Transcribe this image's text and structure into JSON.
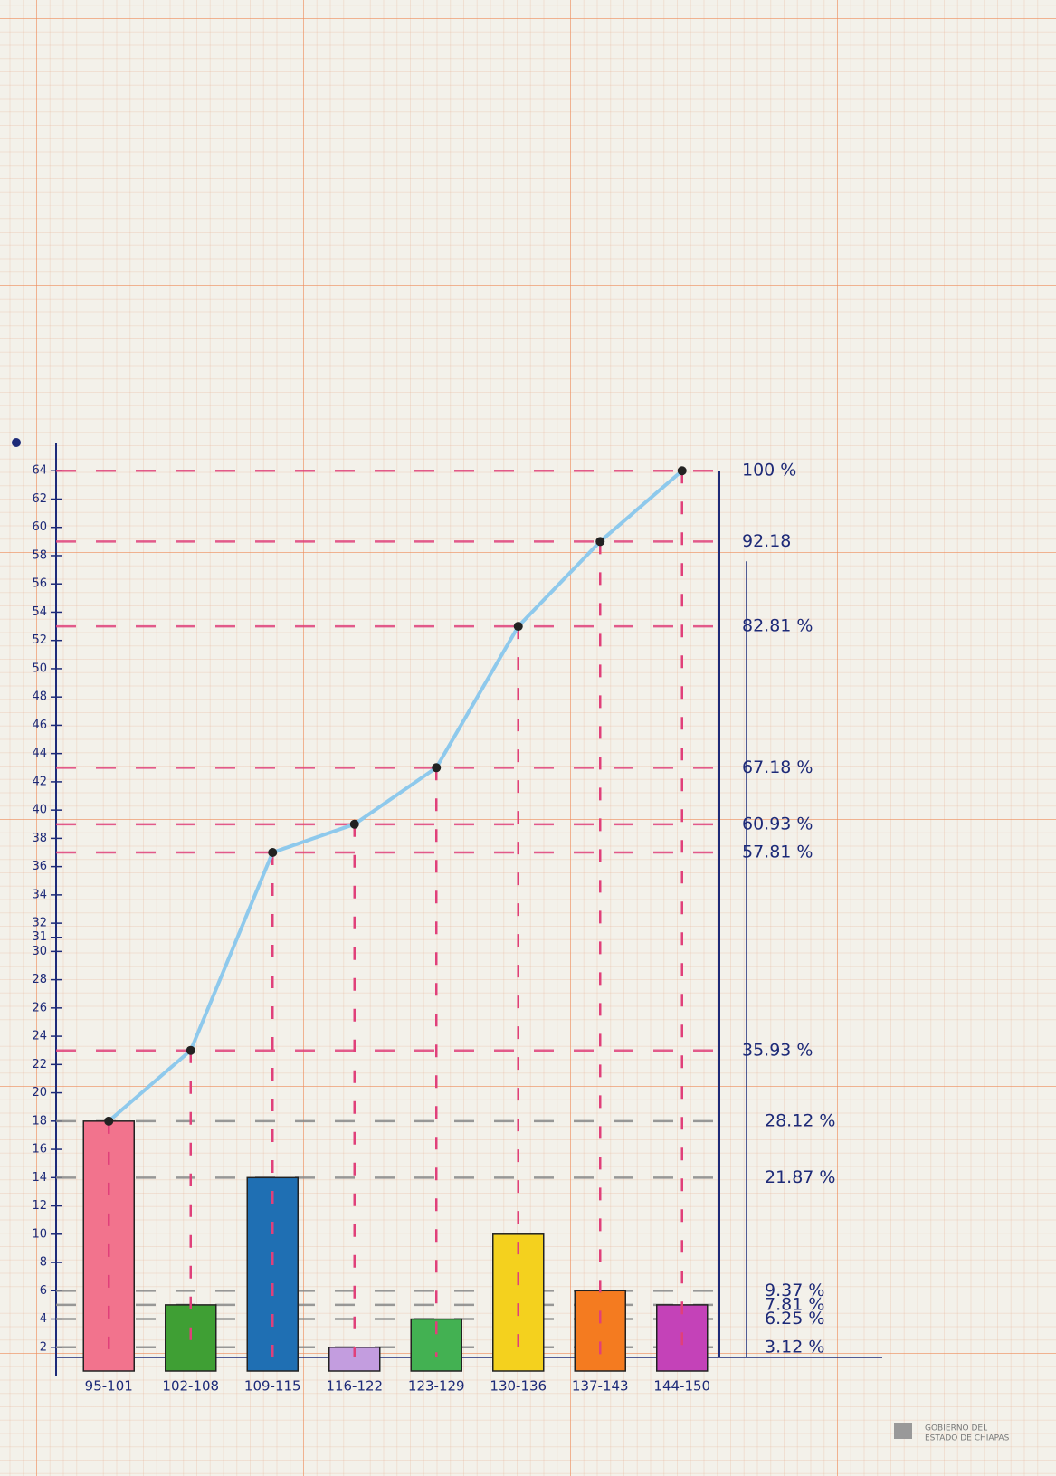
{
  "chart_data": {
    "type": "bar",
    "categories": [
      "95-101",
      "102-108",
      "109-115",
      "116-122",
      "123-129",
      "130-136",
      "137-143",
      "144-150"
    ],
    "values": [
      18,
      5,
      14,
      2,
      4,
      10,
      6,
      5
    ],
    "colors": [
      "#f2738d",
      "#3f9f34",
      "#1f6fb3",
      "#c39ddf",
      "#43b152",
      "#f4d11e",
      "#f47b20",
      "#c442b8"
    ],
    "line": {
      "values": [
        18,
        23,
        37,
        39,
        43,
        53,
        59,
        64
      ],
      "color": "#8ec9ec"
    },
    "ylim": [
      0,
      66
    ],
    "yticks": [
      2,
      4,
      6,
      8,
      10,
      12,
      14,
      16,
      18,
      20,
      22,
      24,
      26,
      28,
      30,
      31,
      32,
      34,
      36,
      38,
      40,
      42,
      44,
      46,
      48,
      50,
      52,
      54,
      56,
      58,
      60,
      62,
      64
    ],
    "y2lim": [
      0,
      103.125
    ],
    "y2ticks": [
      {
        "value": 100,
        "label": "100 %"
      },
      92.18,
      {
        "value": 82.81,
        "label": "82.81 %"
      },
      {
        "value": 67.18,
        "label": "67.18 %"
      },
      {
        "value": 60.93,
        "label": "60.93 %"
      },
      {
        "value": 57.81,
        "label": "57.81 %"
      },
      {
        "value": 35.93,
        "label": "35.93 %"
      },
      {
        "value": 28.12,
        "label": "28.12 %"
      },
      {
        "value": 21.87,
        "label": "21.87 %"
      },
      {
        "value": 9.37,
        "label": "9.37 %"
      },
      {
        "value": 7.81,
        "label": "7.81 %"
      },
      {
        "value": 6.25,
        "label": "6.25 %"
      },
      {
        "value": 3.12,
        "label": "3.12 %"
      }
    ],
    "footer_lines": [
      "GOBIERNO DEL",
      "ESTADO DE CHIAPAS"
    ]
  }
}
